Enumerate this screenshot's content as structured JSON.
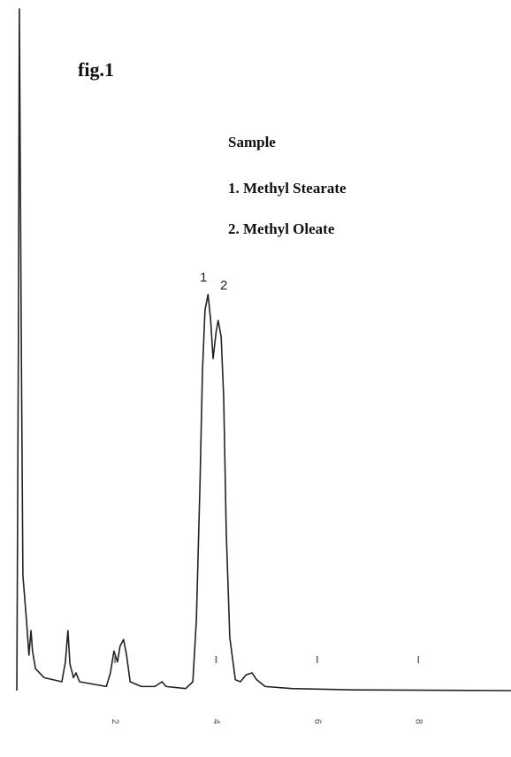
{
  "chart_data": {
    "type": "line",
    "title": "fig.1",
    "legend_title": "Sample",
    "notes": [
      "1. Methyl Stearate",
      "2. Methyl Oleate"
    ],
    "peak_labels": [
      "1",
      "2"
    ],
    "x": [
      0.06,
      0.09,
      0.11,
      0.15,
      0.18,
      0.25,
      0.3,
      0.34,
      0.37,
      0.43,
      0.6,
      0.95,
      1.02,
      1.07,
      1.11,
      1.18,
      1.23,
      1.3,
      1.83,
      1.91,
      1.98,
      2.05,
      2.1,
      2.17,
      2.23,
      2.3,
      2.52,
      2.79,
      2.93,
      3.01,
      3.4,
      3.54,
      3.61,
      3.68,
      3.73,
      3.78,
      3.84,
      3.89,
      3.94,
      4.0,
      4.04,
      4.1,
      4.15,
      4.2,
      4.27,
      4.38,
      4.48,
      4.59,
      4.71,
      4.8,
      4.97,
      5.5,
      6.72,
      9.83
    ],
    "series": [
      {
        "color": "#222222",
        "values": [
          0,
          49.4,
          100,
          49.4,
          16.9,
          10.4,
          5.2,
          8.8,
          5.8,
          3.2,
          1.9,
          1.3,
          4.2,
          8.8,
          3.9,
          1.9,
          2.6,
          1.3,
          0.6,
          2.6,
          5.8,
          4.2,
          6.5,
          7.5,
          5.2,
          1.3,
          0.6,
          0.6,
          1.3,
          0.6,
          0.3,
          1.3,
          10.4,
          29.9,
          46.8,
          55.8,
          58.1,
          54.5,
          48.7,
          52.6,
          54.3,
          51.9,
          42.9,
          23.4,
          7.8,
          1.6,
          1.3,
          2.3,
          2.6,
          1.6,
          0.6,
          0.3,
          0.1,
          0
        ]
      }
    ],
    "xlim": [
      0,
      9.83
    ],
    "ylim": [
      0,
      100
    ],
    "xticks": [
      2,
      4,
      6,
      8
    ]
  }
}
